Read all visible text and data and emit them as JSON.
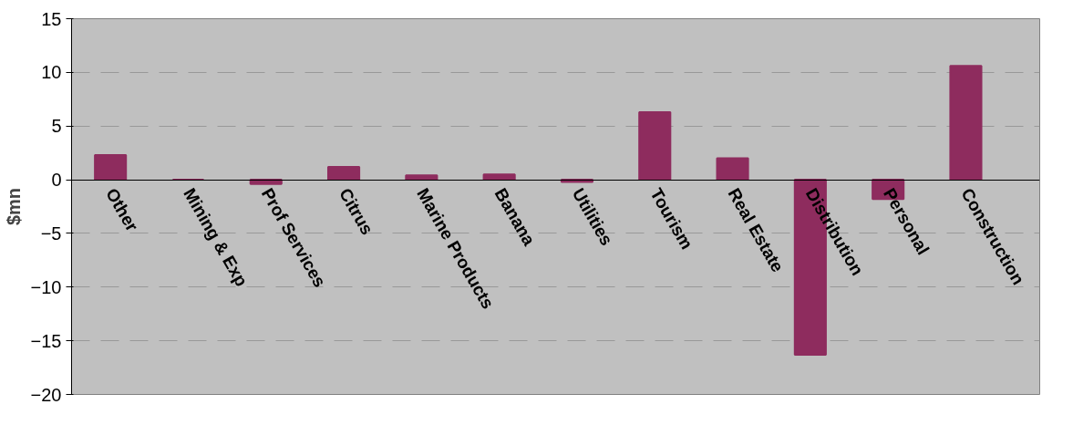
{
  "chart_data": {
    "type": "bar",
    "ylabel": "$mn",
    "categories": [
      "Other",
      "Mining & Exp",
      "Prof Services",
      "Citrus",
      "Marine Products",
      "Banana",
      "Utilities",
      "Tourism",
      "Real Estate",
      "Distribution",
      "Personal",
      "Construction"
    ],
    "values": [
      2.3,
      0,
      -0.4,
      1.2,
      0.4,
      0.5,
      -0.2,
      6.3,
      2.0,
      -16.3,
      -1.8,
      10.6
    ],
    "color": "#8e2c5e",
    "ylim": [
      -20,
      15
    ],
    "yticks": [
      -20,
      -15,
      -10,
      -5,
      0,
      5,
      10,
      15
    ],
    "grid": "y"
  }
}
